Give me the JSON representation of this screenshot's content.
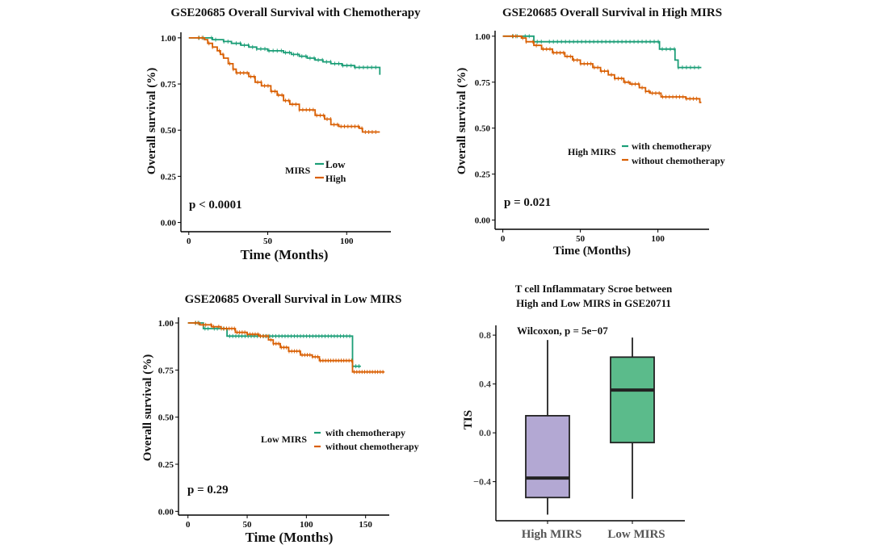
{
  "chart_data": [
    {
      "id": "p1",
      "type": "line",
      "title": "GSE20685 Overall Survival with Chemotherapy",
      "xlabel": "Time (Months)",
      "ylabel": "Overall survival (%)",
      "xticks": [
        "0",
        "50",
        "100"
      ],
      "yticks": [
        "0.00",
        "0.25",
        "0.50",
        "0.75",
        "1.00"
      ],
      "xlim": [
        -5,
        128
      ],
      "ylim": [
        -0.05,
        1.03
      ],
      "annotation": "p < 0.0001",
      "legend": {
        "title": "MIRS",
        "position": "center-right"
      },
      "series": [
        {
          "name": "Low",
          "color": "#1b9e77",
          "points": [
            [
              0,
              1.0
            ],
            [
              15,
              0.99
            ],
            [
              22,
              0.98
            ],
            [
              27,
              0.97
            ],
            [
              33,
              0.96
            ],
            [
              38,
              0.95
            ],
            [
              43,
              0.94
            ],
            [
              50,
              0.93
            ],
            [
              60,
              0.92
            ],
            [
              65,
              0.91
            ],
            [
              70,
              0.9
            ],
            [
              75,
              0.89
            ],
            [
              80,
              0.88
            ],
            [
              85,
              0.87
            ],
            [
              90,
              0.86
            ],
            [
              97,
              0.85
            ],
            [
              105,
              0.84
            ],
            [
              120,
              0.84
            ],
            [
              121,
              0.8
            ]
          ]
        },
        {
          "name": "High",
          "color": "#d95f02",
          "points": [
            [
              0,
              1.0
            ],
            [
              10,
              0.99
            ],
            [
              12,
              0.97
            ],
            [
              15,
              0.95
            ],
            [
              18,
              0.93
            ],
            [
              20,
              0.91
            ],
            [
              22,
              0.89
            ],
            [
              25,
              0.86
            ],
            [
              28,
              0.83
            ],
            [
              30,
              0.81
            ],
            [
              38,
              0.79
            ],
            [
              42,
              0.76
            ],
            [
              46,
              0.74
            ],
            [
              52,
              0.71
            ],
            [
              56,
              0.69
            ],
            [
              60,
              0.66
            ],
            [
              64,
              0.64
            ],
            [
              70,
              0.61
            ],
            [
              80,
              0.58
            ],
            [
              86,
              0.56
            ],
            [
              90,
              0.53
            ],
            [
              95,
              0.52
            ],
            [
              108,
              0.51
            ],
            [
              110,
              0.49
            ],
            [
              121,
              0.49
            ]
          ]
        }
      ]
    },
    {
      "id": "p2",
      "type": "line",
      "title": "GSE20685 Overall Survival in High MIRS",
      "xlabel": "Time (Months)",
      "ylabel": "Overall survival (%)",
      "xticks": [
        "0",
        "50",
        "100"
      ],
      "yticks": [
        "0.00",
        "0.25",
        "0.50",
        "0.75",
        "1.00"
      ],
      "xlim": [
        -5,
        133
      ],
      "ylim": [
        -0.05,
        1.03
      ],
      "annotation": "p = 0.021",
      "legend": {
        "title": "High MIRS",
        "position": "center-right"
      },
      "series": [
        {
          "name": "with chemotherapy",
          "color": "#1b9e77",
          "points": [
            [
              0,
              1.0
            ],
            [
              19,
              1.0
            ],
            [
              20,
              0.97
            ],
            [
              100,
              0.97
            ],
            [
              101,
              0.93
            ],
            [
              109,
              0.93
            ],
            [
              111,
              0.87
            ],
            [
              113,
              0.83
            ],
            [
              128,
              0.83
            ]
          ]
        },
        {
          "name": "without chemotherapy",
          "color": "#d95f02",
          "points": [
            [
              0,
              1.0
            ],
            [
              12,
              0.99
            ],
            [
              15,
              0.97
            ],
            [
              20,
              0.95
            ],
            [
              25,
              0.93
            ],
            [
              32,
              0.91
            ],
            [
              40,
              0.89
            ],
            [
              45,
              0.87
            ],
            [
              50,
              0.85
            ],
            [
              58,
              0.83
            ],
            [
              63,
              0.81
            ],
            [
              68,
              0.79
            ],
            [
              72,
              0.77
            ],
            [
              78,
              0.75
            ],
            [
              82,
              0.74
            ],
            [
              88,
              0.72
            ],
            [
              92,
              0.7
            ],
            [
              95,
              0.69
            ],
            [
              102,
              0.67
            ],
            [
              112,
              0.67
            ],
            [
              118,
              0.66
            ],
            [
              126,
              0.66
            ],
            [
              127,
              0.64
            ],
            [
              128,
              0.64
            ]
          ]
        }
      ]
    },
    {
      "id": "p3",
      "type": "line",
      "title": "GSE20685 Overall Survival in Low MIRS",
      "xlabel": "Time (Months)",
      "ylabel": "Overall survival (%)",
      "xticks": [
        "0",
        "50",
        "100",
        "150"
      ],
      "yticks": [
        "0.00",
        "0.25",
        "0.50",
        "0.75",
        "1.00"
      ],
      "xlim": [
        -8,
        170
      ],
      "ylim": [
        -0.02,
        1.03
      ],
      "annotation": "p = 0.29",
      "legend": {
        "title": "Low MIRS",
        "position": "center-right"
      },
      "series": [
        {
          "name": "with chemotherapy",
          "color": "#1b9e77",
          "points": [
            [
              0,
              1.0
            ],
            [
              12,
              1.0
            ],
            [
              13,
              0.97
            ],
            [
              32,
              0.97
            ],
            [
              33,
              0.93
            ],
            [
              138,
              0.93
            ],
            [
              139,
              0.77
            ],
            [
              146,
              0.77
            ]
          ]
        },
        {
          "name": "without chemotherapy",
          "color": "#d95f02",
          "points": [
            [
              0,
              1.0
            ],
            [
              10,
              0.99
            ],
            [
              20,
              0.98
            ],
            [
              28,
              0.97
            ],
            [
              40,
              0.95
            ],
            [
              50,
              0.94
            ],
            [
              60,
              0.93
            ],
            [
              68,
              0.91
            ],
            [
              72,
              0.89
            ],
            [
              78,
              0.87
            ],
            [
              85,
              0.85
            ],
            [
              95,
              0.83
            ],
            [
              105,
              0.82
            ],
            [
              111,
              0.8
            ],
            [
              138,
              0.8
            ],
            [
              139,
              0.74
            ],
            [
              166,
              0.74
            ]
          ]
        }
      ]
    },
    {
      "id": "p4",
      "type": "box",
      "title_lines": [
        "T cell Inflammatary Scroe between",
        "High and Low MIRS in GSE20711"
      ],
      "xlabel": "",
      "ylabel": "TIS",
      "yticks": [
        -0.4,
        0.0,
        0.4,
        0.8
      ],
      "ylim": [
        -0.72,
        0.88
      ],
      "annotation": "Wilcoxon, p = 5e−07",
      "categories": [
        "High MIRS",
        "Low MIRS"
      ],
      "boxes": [
        {
          "name": "High MIRS",
          "color": "#b3a8d3",
          "min": -0.67,
          "q1": -0.53,
          "median": -0.37,
          "q3": 0.14,
          "max": 0.76
        },
        {
          "name": "Low MIRS",
          "color": "#5bbb8b",
          "min": -0.54,
          "q1": -0.08,
          "median": 0.35,
          "q3": 0.62,
          "max": 0.78
        }
      ]
    }
  ]
}
